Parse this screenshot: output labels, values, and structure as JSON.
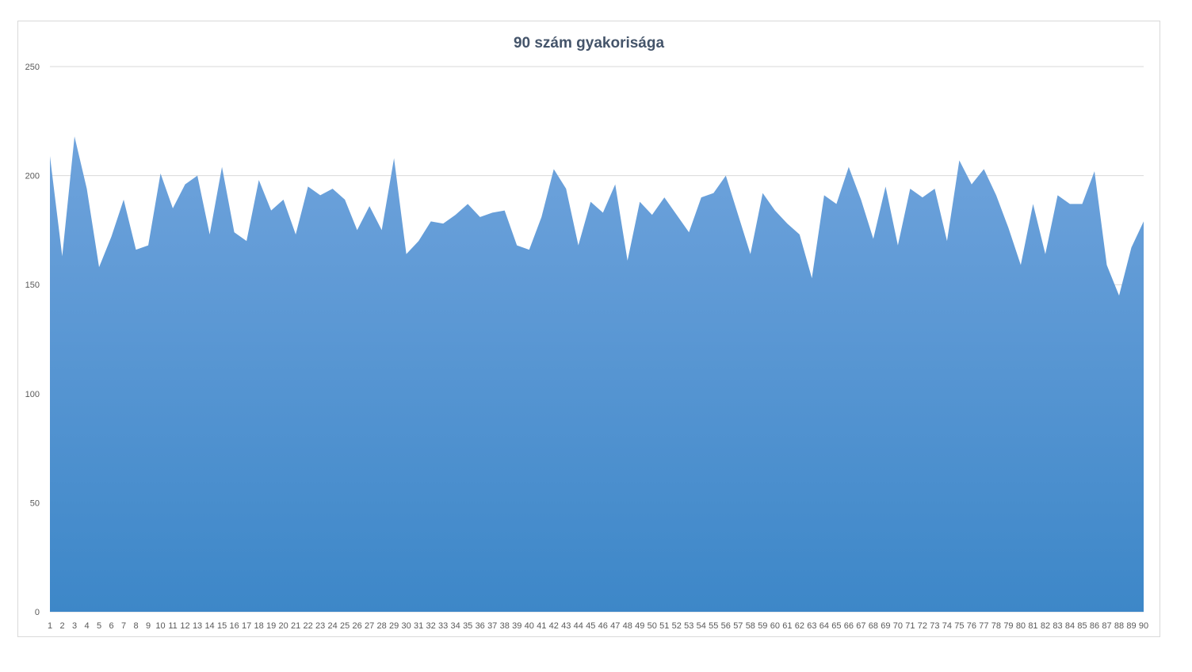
{
  "chart_data": {
    "type": "area",
    "title": "90 szám gyakorisága",
    "xlabel": "",
    "ylabel": "",
    "ylim": [
      0,
      250
    ],
    "yticks": [
      0,
      50,
      100,
      150,
      200,
      250
    ],
    "grid": true,
    "legend": "none",
    "color_top": "#6fa3dc",
    "color_bottom": "#3d87c8",
    "categories": [
      "1",
      "2",
      "3",
      "4",
      "5",
      "6",
      "7",
      "8",
      "9",
      "10",
      "11",
      "12",
      "13",
      "14",
      "15",
      "16",
      "17",
      "18",
      "19",
      "20",
      "21",
      "22",
      "23",
      "24",
      "25",
      "26",
      "27",
      "28",
      "29",
      "30",
      "31",
      "32",
      "33",
      "34",
      "35",
      "36",
      "37",
      "38",
      "39",
      "40",
      "41",
      "42",
      "43",
      "44",
      "45",
      "46",
      "47",
      "48",
      "49",
      "50",
      "51",
      "52",
      "53",
      "54",
      "55",
      "56",
      "57",
      "58",
      "59",
      "60",
      "61",
      "62",
      "63",
      "64",
      "65",
      "66",
      "67",
      "68",
      "69",
      "70",
      "71",
      "72",
      "73",
      "74",
      "75",
      "76",
      "77",
      "78",
      "79",
      "80",
      "81",
      "82",
      "83",
      "84",
      "85",
      "86",
      "87",
      "88",
      "89",
      "90"
    ],
    "series": [
      {
        "values": [
          209,
          163,
          218,
          194,
          158,
          172,
          189,
          166,
          168,
          201,
          185,
          196,
          200,
          173,
          204,
          174,
          170,
          198,
          184,
          189,
          173,
          195,
          191,
          194,
          189,
          175,
          186,
          175,
          208,
          164,
          170,
          179,
          178,
          182,
          187,
          181,
          183,
          184,
          168,
          166,
          181,
          203,
          194,
          168,
          188,
          183,
          196,
          161,
          188,
          182,
          190,
          182,
          174,
          190,
          192,
          200,
          182,
          164,
          192,
          184,
          178,
          173,
          153,
          191,
          187,
          204,
          189,
          171,
          195,
          168,
          194,
          190,
          194,
          170,
          207,
          196,
          203,
          191,
          176,
          159,
          187,
          164,
          191,
          187,
          187,
          202,
          159,
          145,
          167,
          179
        ]
      }
    ]
  }
}
